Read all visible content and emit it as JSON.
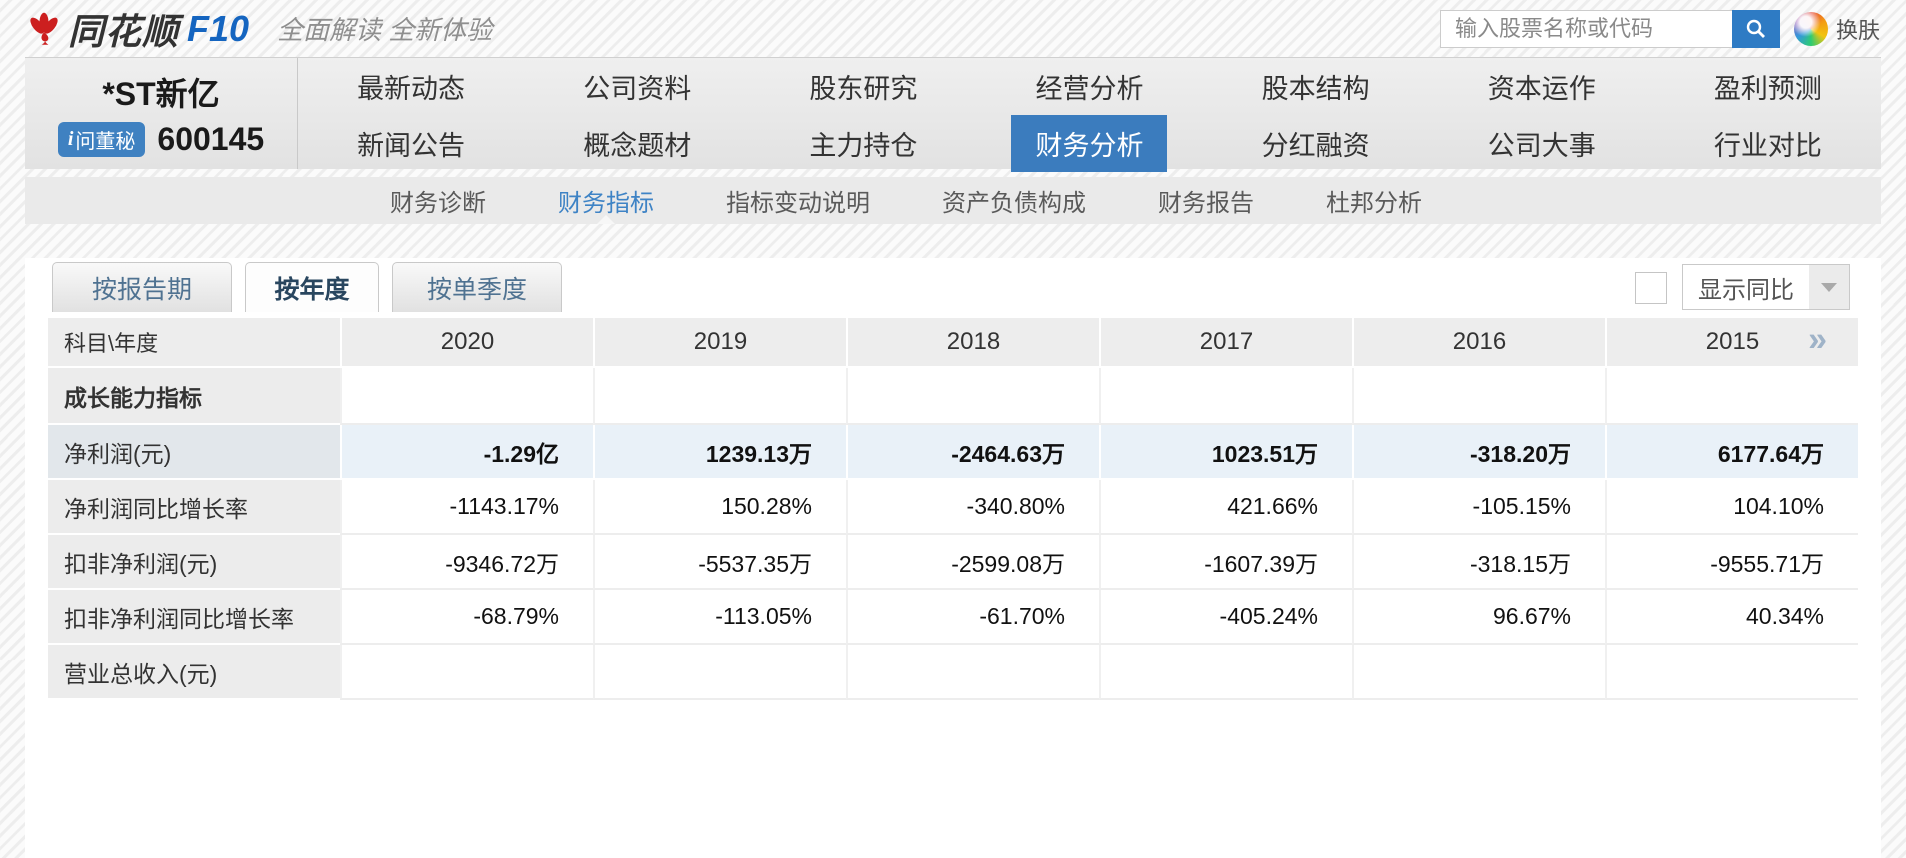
{
  "header": {
    "logo_text": "同花顺",
    "logo_suffix": "F10",
    "tagline": "全面解读 全新体验",
    "search_placeholder": "输入股票名称或代码",
    "skin_label": "换肤"
  },
  "stock": {
    "name": "*ST新亿",
    "code": "600145",
    "badge_icon": "i",
    "badge_label": "问董秘"
  },
  "main_nav": {
    "row1": [
      "最新动态",
      "公司资料",
      "股东研究",
      "经营分析",
      "股本结构",
      "资本运作",
      "盈利预测"
    ],
    "row2": [
      "新闻公告",
      "概念题材",
      "主力持仓",
      "财务分析",
      "分红融资",
      "公司大事",
      "行业对比"
    ],
    "active": "财务分析"
  },
  "sub_nav": {
    "items": [
      "财务诊断",
      "财务指标",
      "指标变动说明",
      "资产负债构成",
      "财务报告",
      "杜邦分析"
    ],
    "active": "财务指标"
  },
  "tabs": {
    "items": [
      "按报告期",
      "按年度",
      "按单季度"
    ],
    "active": "按年度"
  },
  "controls": {
    "compare_checkbox_checked": false,
    "compare_label": "显示同比"
  },
  "table": {
    "corner_header": "科目\\年度",
    "years": [
      "2020",
      "2019",
      "2018",
      "2017",
      "2016",
      "2015"
    ],
    "more_icon": "»",
    "rows": [
      {
        "label": "成长能力指标",
        "type": "section",
        "values": [
          "",
          "",
          "",
          "",
          "",
          ""
        ]
      },
      {
        "label": "净利润(元)",
        "type": "highlight",
        "values": [
          "-1.29亿",
          "1239.13万",
          "-2464.63万",
          "1023.51万",
          "-318.20万",
          "6177.64万"
        ]
      },
      {
        "label": "净利润同比增长率",
        "type": "normal",
        "values": [
          "-1143.17%",
          "150.28%",
          "-340.80%",
          "421.66%",
          "-105.15%",
          "104.10%"
        ]
      },
      {
        "label": "扣非净利润(元)",
        "type": "normal",
        "values": [
          "-9346.72万",
          "-5537.35万",
          "-2599.08万",
          "-1607.39万",
          "-318.15万",
          "-9555.71万"
        ]
      },
      {
        "label": "扣非净利润同比增长率",
        "type": "normal",
        "values": [
          "-68.79%",
          "-113.05%",
          "-61.70%",
          "-405.24%",
          "96.67%",
          "40.34%"
        ]
      },
      {
        "label": "营业总收入(元)",
        "type": "clipped",
        "values": [
          "",
          "",
          "",
          "",
          "",
          ""
        ]
      }
    ]
  },
  "colors": {
    "accent_blue": "#3b7cbe",
    "link_blue": "#3e83c5",
    "f10_blue": "#1565c0",
    "logo_red": "#cc1f1f",
    "search_button_blue": "#2e7bc4",
    "highlight_row_bg": "#e9f1f8"
  }
}
